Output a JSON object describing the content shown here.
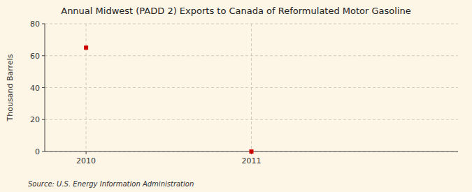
{
  "chart_data": {
    "type": "scatter",
    "title": "Annual Midwest (PADD 2) Exports to Canada of Reformulated Motor Gasoline",
    "ylabel": "Thousand Barrels",
    "annotations": [
      "Source: U.S. Energy Information Administration"
    ],
    "x": [
      2010,
      2011
    ],
    "values": [
      65,
      0
    ],
    "color": "#cc0000",
    "marker": "square",
    "xlim": [
      2009.75,
      2012.25
    ],
    "xticks": [
      2010,
      2011
    ],
    "ylim": [
      0,
      80
    ],
    "yticks": [
      0,
      20,
      40,
      60,
      80
    ],
    "grid": true
  }
}
